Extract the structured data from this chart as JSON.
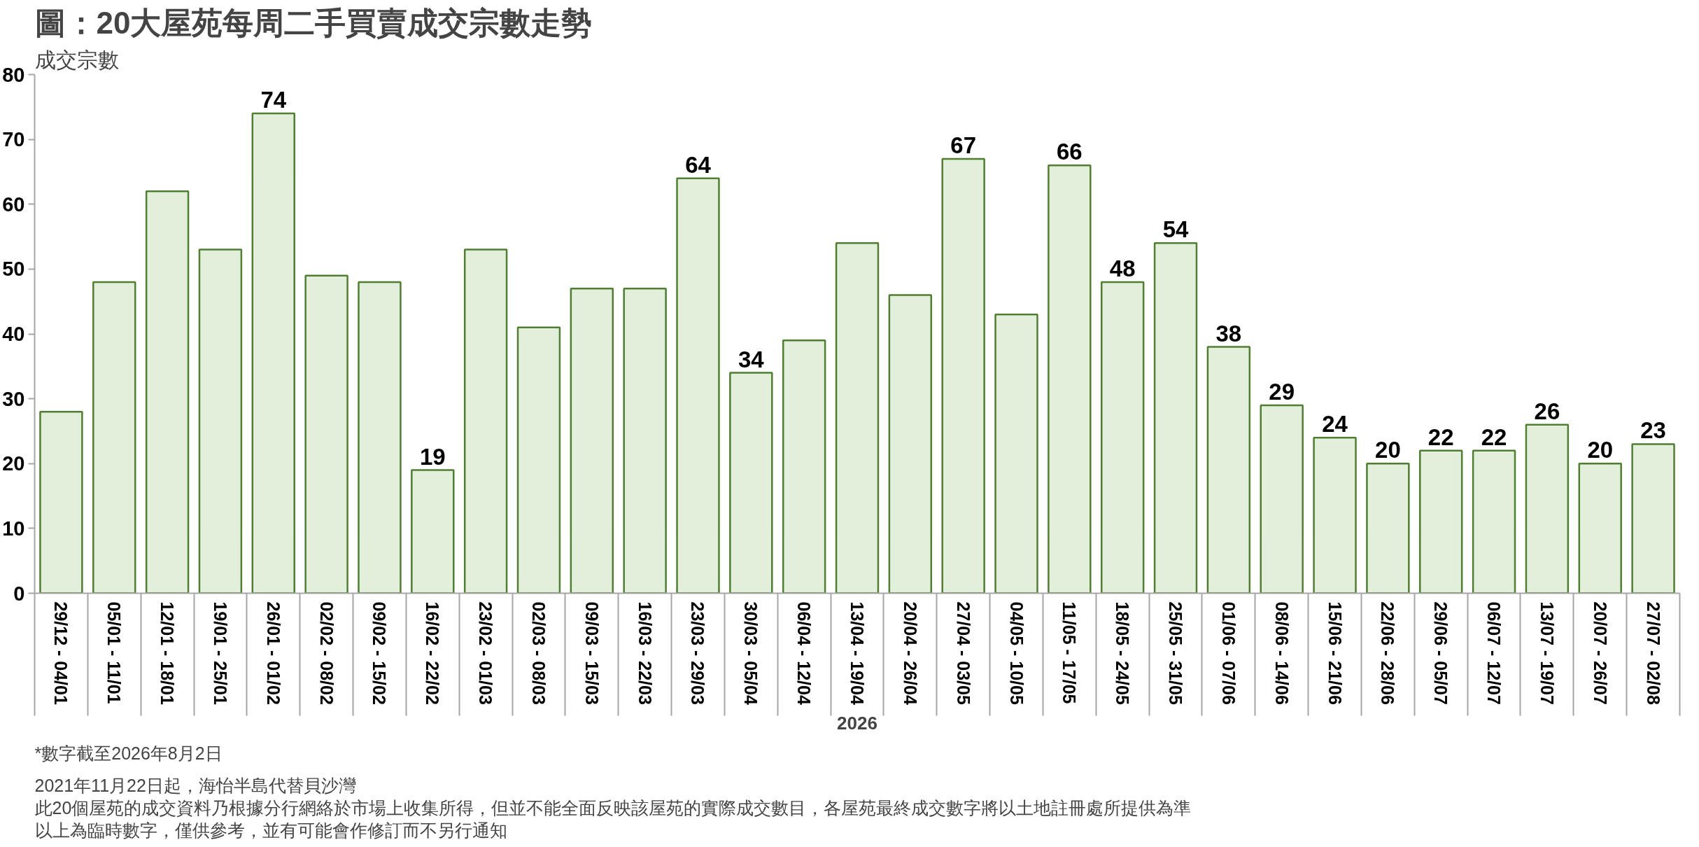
{
  "chart_data": {
    "type": "bar",
    "title": "圖：20大屋苑每周二手買賣成交宗數走勢",
    "ylabel": "成交宗數",
    "xlabel": "2026",
    "categories": [
      "29/12 - 04/01",
      "05/01 - 11/01",
      "12/01 - 18/01",
      "19/01 - 25/01",
      "26/01 - 01/02",
      "02/02 - 08/02",
      "09/02 - 15/02",
      "16/02 - 22/02",
      "23/02 - 01/03",
      "02/03 - 08/03",
      "09/03 - 15/03",
      "16/03 - 22/03",
      "23/03 - 29/03",
      "30/03 - 05/04",
      "06/04 - 12/04",
      "13/04 - 19/04",
      "20/04 - 26/04",
      "27/04 - 03/05",
      "04/05 - 10/05",
      "11/05 - 17/05",
      "18/05 - 24/05",
      "25/05 - 31/05",
      "01/06 - 07/06",
      "08/06 - 14/06",
      "15/06 - 21/06",
      "22/06 - 28/06",
      "29/06 - 05/07",
      "06/07 - 12/07",
      "13/07 - 19/07",
      "20/07 - 26/07",
      "27/07 - 02/08"
    ],
    "values": [
      28,
      48,
      62,
      53,
      74,
      49,
      48,
      19,
      53,
      41,
      47,
      47,
      64,
      34,
      39,
      54,
      46,
      67,
      43,
      66,
      48,
      54,
      38,
      29,
      24,
      20,
      22,
      22,
      26,
      20,
      23
    ],
    "value_labels": [
      null,
      null,
      null,
      null,
      "74",
      null,
      null,
      "19",
      null,
      null,
      null,
      null,
      "64",
      "34",
      null,
      null,
      null,
      "67",
      null,
      "66",
      "48",
      "54",
      "38",
      "29",
      "24",
      "20",
      "22",
      "22",
      "26",
      "20",
      "23"
    ],
    "color": "#e2efda",
    "ylim": [
      0,
      80
    ],
    "yticks": [
      0,
      10,
      20,
      30,
      40,
      50,
      60,
      70,
      80
    ],
    "annotations": [
      "*數字截至2026年8月2日",
      "2021年11月22日起，海怡半島代替貝沙灣",
      "此20個屋苑的成交資料乃根據分行網絡於市場上收集所得，但並不能全面反映該屋苑的實際成交數目，各屋苑最終成交數字將以土地註冊處所提供為準",
      "以上為臨時數字，僅供參考，並有可能會作修訂而不另行通知"
    ]
  }
}
